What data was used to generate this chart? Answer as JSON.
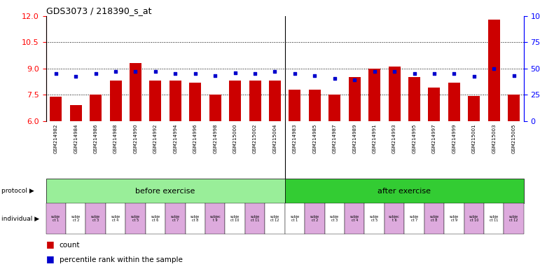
{
  "title": "GDS3073 / 218390_s_at",
  "gsm_labels": [
    "GSM214982",
    "GSM214984",
    "GSM214986",
    "GSM214988",
    "GSM214990",
    "GSM214992",
    "GSM214994",
    "GSM214996",
    "GSM214998",
    "GSM215000",
    "GSM215002",
    "GSM215004",
    "GSM214983",
    "GSM214985",
    "GSM214987",
    "GSM214989",
    "GSM214991",
    "GSM214993",
    "GSM214995",
    "GSM214997",
    "GSM214999",
    "GSM215001",
    "GSM215003",
    "GSM215005"
  ],
  "bar_values": [
    7.4,
    6.9,
    7.5,
    8.3,
    9.3,
    8.3,
    8.3,
    8.2,
    7.5,
    8.3,
    8.3,
    8.3,
    7.8,
    7.8,
    7.5,
    8.5,
    9.0,
    9.1,
    8.5,
    7.9,
    8.2,
    7.45,
    11.8,
    7.5
  ],
  "percentile_values": [
    8.7,
    8.55,
    8.7,
    8.85,
    8.85,
    8.85,
    8.7,
    8.7,
    8.6,
    8.75,
    8.7,
    8.85,
    8.7,
    8.6,
    8.45,
    8.35,
    8.85,
    8.85,
    8.7,
    8.7,
    8.7,
    8.55,
    9.0,
    8.6
  ],
  "ylim_left": [
    6,
    12
  ],
  "yticks_left": [
    6,
    7.5,
    9,
    10.5,
    12
  ],
  "ylim_right": [
    0,
    100
  ],
  "yticks_right": [
    0,
    25,
    50,
    75,
    100
  ],
  "bar_color": "#cc0000",
  "dot_color": "#0000cc",
  "bar_bottom": 6,
  "protocol_before": "before exercise",
  "protocol_after": "after exercise",
  "legend_count_label": "count",
  "legend_pct_label": "percentile rank within the sample",
  "bg_color": "#ffffff",
  "plot_bg": "#ffffff",
  "before_color": "#99ee99",
  "after_color": "#33cc33",
  "ind_colors_before": [
    "#ddaadd",
    "#ffffff",
    "#ddaadd",
    "#ffffff",
    "#ddaadd",
    "#ffffff",
    "#ddaadd",
    "#ffffff",
    "#ddaadd",
    "#ffffff",
    "#ddaadd",
    "#ffffff"
  ],
  "ind_colors_after": [
    "#ffffff",
    "#ddaadd",
    "#ffffff",
    "#ddaadd",
    "#ffffff",
    "#ddaadd",
    "#ffffff",
    "#ddaadd",
    "#ffffff",
    "#ddaadd",
    "#ffffff",
    "#ddaadd"
  ],
  "ind_labels_before": [
    "subje\nct 1",
    "subje\nct 2",
    "subje\nct 3",
    "subje\nct 4",
    "subje\nct 5",
    "subje\nct 6",
    "subje\nct 7",
    "subje\nct 8",
    "subjec\nt 9",
    "subje\nct 10",
    "subje\nct 11",
    "subje\nct 12"
  ],
  "ind_labels_after": [
    "subje\nct 1",
    "subje\nct 2",
    "subje\nct 3",
    "subje\nct 4",
    "subje\nct 5",
    "subjec\nt 6",
    "subje\nct 7",
    "subje\nct 8",
    "subje\nct 9",
    "subje\nct 10",
    "subje\nct 11",
    "subje\nct 12"
  ],
  "hgrid_lines": [
    7.5,
    9.0,
    10.5
  ]
}
